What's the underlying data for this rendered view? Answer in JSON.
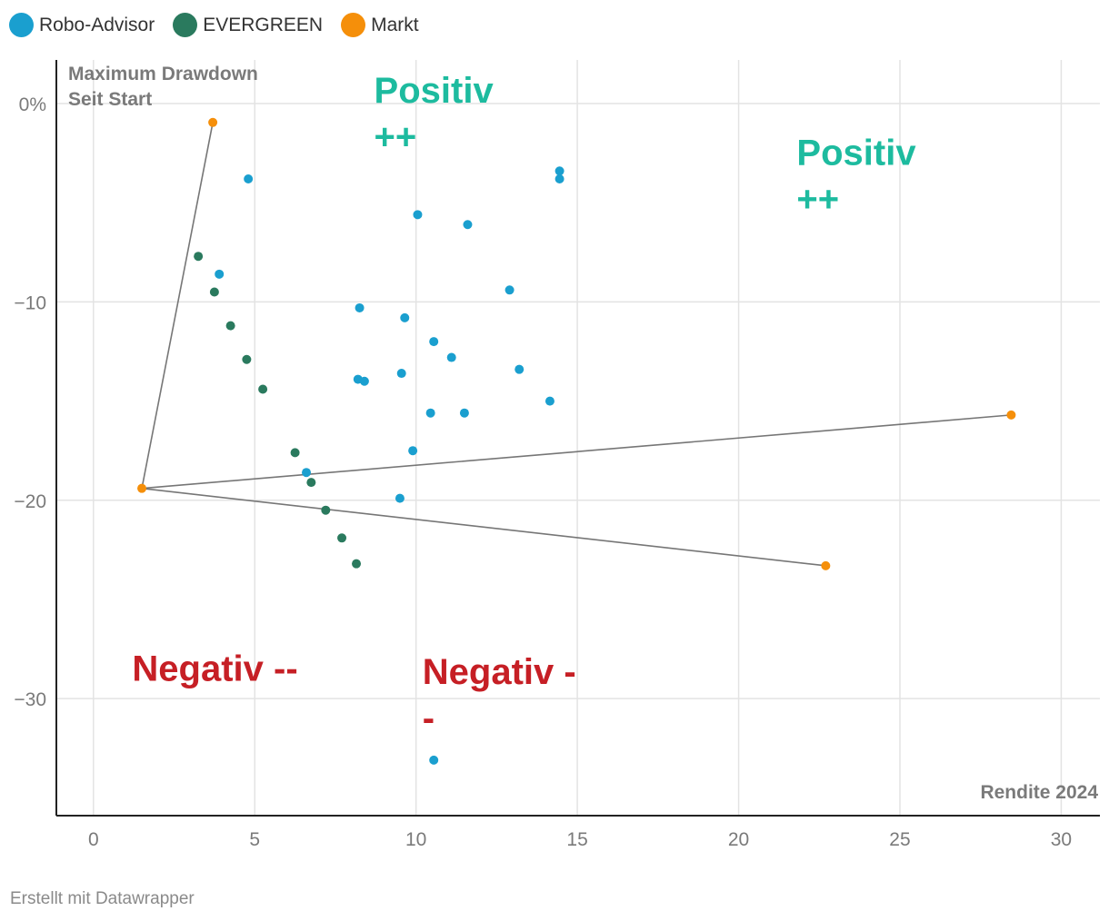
{
  "legend": {
    "items": [
      {
        "label": "Robo-Advisor",
        "color": "#1a9fcf"
      },
      {
        "label": "EVERGREEN",
        "color": "#2a7a5e"
      },
      {
        "label": "Markt",
        "color": "#f58f0a"
      }
    ]
  },
  "footer": {
    "credit": "Erstellt mit Datawrapper"
  },
  "chart_data": {
    "type": "scatter",
    "title": "",
    "xlabel": "Rendite 2024",
    "ylabel_lines": [
      "Maximum Drawdown",
      "Seit Start"
    ],
    "xlim": [
      -1.15,
      31.2
    ],
    "ylim": [
      -35.9,
      2.2
    ],
    "xticks": [
      0,
      5,
      10,
      15,
      20,
      25,
      30
    ],
    "xtick_labels": [
      "0",
      "5",
      "10",
      "15",
      "20",
      "25",
      "30"
    ],
    "yticks": [
      0,
      -10,
      -20,
      -30
    ],
    "ytick_labels": [
      "0%",
      "−10",
      "−20",
      "−30"
    ],
    "grid": true,
    "series": [
      {
        "name": "Robo-Advisor",
        "color": "#1a9fcf",
        "points": [
          {
            "x": 4.8,
            "y": -3.8
          },
          {
            "x": 3.9,
            "y": -8.6
          },
          {
            "x": 10.05,
            "y": -5.6
          },
          {
            "x": 11.6,
            "y": -6.1
          },
          {
            "x": 14.45,
            "y": -3.4
          },
          {
            "x": 14.45,
            "y": -3.8
          },
          {
            "x": 12.9,
            "y": -9.4
          },
          {
            "x": 8.25,
            "y": -10.3
          },
          {
            "x": 9.65,
            "y": -10.8
          },
          {
            "x": 10.55,
            "y": -12.0
          },
          {
            "x": 11.1,
            "y": -12.8
          },
          {
            "x": 13.2,
            "y": -13.4
          },
          {
            "x": 9.55,
            "y": -13.6
          },
          {
            "x": 8.2,
            "y": -13.9
          },
          {
            "x": 8.4,
            "y": -14.0
          },
          {
            "x": 14.15,
            "y": -15.0
          },
          {
            "x": 10.45,
            "y": -15.6
          },
          {
            "x": 11.5,
            "y": -15.6
          },
          {
            "x": 9.9,
            "y": -17.5
          },
          {
            "x": 6.6,
            "y": -18.6
          },
          {
            "x": 9.5,
            "y": -19.9
          },
          {
            "x": 10.55,
            "y": -33.1
          }
        ]
      },
      {
        "name": "EVERGREEN",
        "color": "#2a7a5e",
        "points": [
          {
            "x": 3.25,
            "y": -7.7
          },
          {
            "x": 3.75,
            "y": -9.5
          },
          {
            "x": 4.25,
            "y": -11.2
          },
          {
            "x": 4.75,
            "y": -12.9
          },
          {
            "x": 5.25,
            "y": -14.4
          },
          {
            "x": 6.25,
            "y": -17.6
          },
          {
            "x": 6.75,
            "y": -19.1
          },
          {
            "x": 7.2,
            "y": -20.5
          },
          {
            "x": 7.7,
            "y": -21.9
          },
          {
            "x": 8.15,
            "y": -23.2
          }
        ]
      },
      {
        "name": "Markt",
        "color": "#f58f0a",
        "points": [
          {
            "x": 3.7,
            "y": -0.95
          },
          {
            "x": 1.5,
            "y": -19.4
          },
          {
            "x": 28.45,
            "y": -15.7
          },
          {
            "x": 22.7,
            "y": -23.3
          }
        ]
      }
    ],
    "connector_lines": [
      {
        "from": {
          "x": 1.5,
          "y": -19.4
        },
        "to": {
          "x": 3.7,
          "y": -0.95
        }
      },
      {
        "from": {
          "x": 1.5,
          "y": -19.4
        },
        "to": {
          "x": 28.45,
          "y": -15.7
        }
      },
      {
        "from": {
          "x": 1.5,
          "y": -19.4
        },
        "to": {
          "x": 22.7,
          "y": -23.3
        }
      }
    ],
    "annotations": [
      {
        "lines": [
          "Positiv",
          "++"
        ],
        "x": 8.7,
        "y": 0.05,
        "color": "#1dbb9f"
      },
      {
        "lines": [
          "Positiv",
          "++"
        ],
        "x": 21.8,
        "y": -3.1,
        "color": "#1dbb9f"
      },
      {
        "lines": [
          "Negativ --"
        ],
        "x": 1.2,
        "y": -29.1,
        "color": "#c61f25"
      },
      {
        "lines": [
          "Negativ -",
          "-"
        ],
        "x": 10.2,
        "y": -29.25,
        "color": "#c61f25"
      }
    ]
  }
}
